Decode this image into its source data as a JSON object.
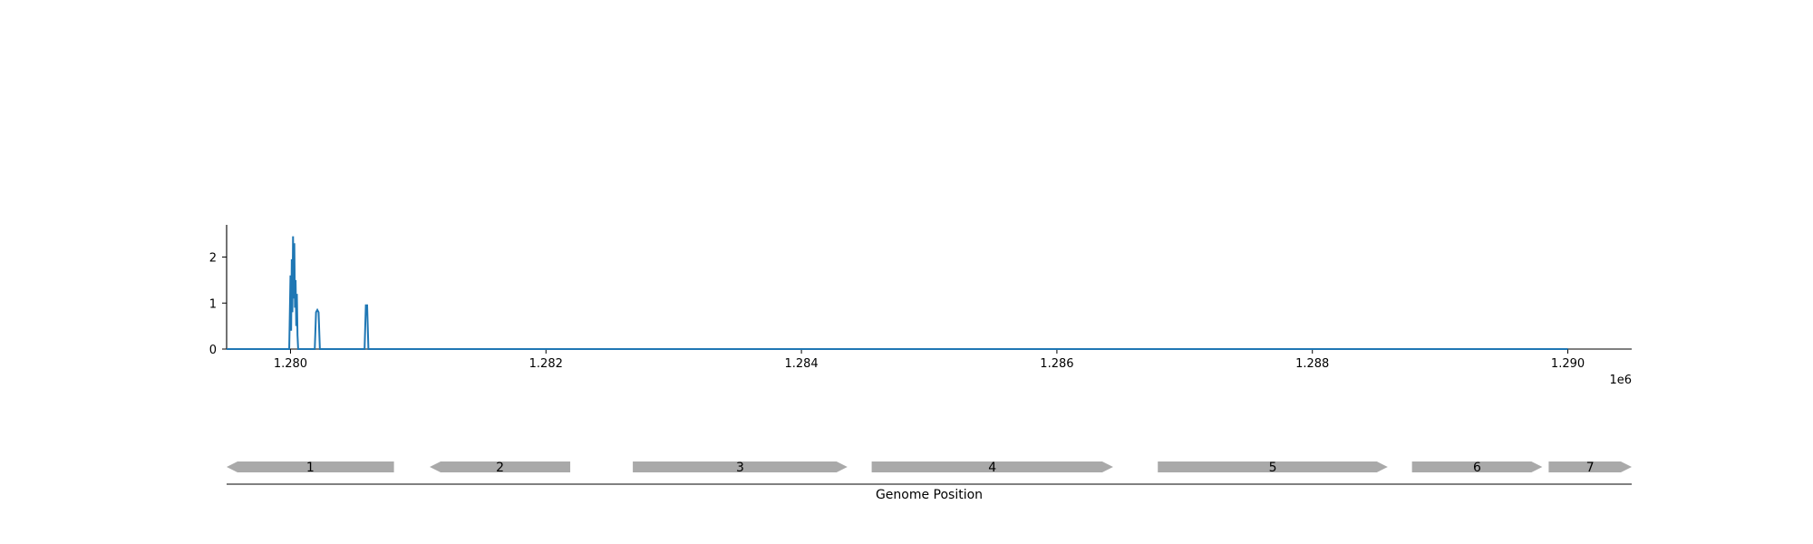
{
  "chart_data": [
    {
      "type": "line",
      "title": "",
      "xlabel": "",
      "ylabel": "",
      "x_offset_label": "1e6",
      "xlim": [
        1.2795,
        1.2905
      ],
      "ylim": [
        0,
        2.7
      ],
      "xticks": [
        1.28,
        1.282,
        1.284,
        1.286,
        1.288,
        1.29
      ],
      "xtick_labels": [
        "1.280",
        "1.282",
        "1.284",
        "1.286",
        "1.288",
        "1.290"
      ],
      "yticks": [
        0,
        1,
        2
      ],
      "ytick_labels": [
        "0",
        "1",
        "2"
      ],
      "grid": false,
      "color": "#1f77b4",
      "series": [
        {
          "x": [
            1.2795,
            1.27999,
            1.28,
            1.280005,
            1.28001,
            1.280015,
            1.28002,
            1.280025,
            1.28003,
            1.280035,
            1.28004,
            1.280045,
            1.28005,
            1.280055,
            1.28006,
            1.28019,
            1.2802,
            1.28021,
            1.28022,
            1.28023,
            1.28058,
            1.28059,
            1.2806,
            1.28061,
            1.29
          ],
          "y": [
            0,
            0,
            1.6,
            0.4,
            1.95,
            0.8,
            2.45,
            1.1,
            2.3,
            0.9,
            1.5,
            0.5,
            1.2,
            0.3,
            0,
            0,
            0.8,
            0.85,
            0.8,
            0,
            0,
            0.95,
            0.95,
            0,
            0
          ]
        }
      ]
    },
    {
      "type": "gene-map",
      "xlabel": "Genome Position",
      "color": "#a9a9a9",
      "genes": [
        {
          "label": "1",
          "start": 1.2795,
          "end": 1.28081,
          "strand": "-"
        },
        {
          "label": "2",
          "start": 1.28109,
          "end": 1.28219,
          "strand": "-"
        },
        {
          "label": "3",
          "start": 1.28268,
          "end": 1.28436,
          "strand": "+"
        },
        {
          "label": "4",
          "start": 1.28455,
          "end": 1.28644,
          "strand": "+"
        },
        {
          "label": "5",
          "start": 1.28679,
          "end": 1.28859,
          "strand": "+"
        },
        {
          "label": "6",
          "start": 1.28878,
          "end": 1.2898,
          "strand": "+"
        },
        {
          "label": "7",
          "start": 1.28985,
          "end": 1.2905,
          "strand": "+"
        }
      ]
    }
  ]
}
